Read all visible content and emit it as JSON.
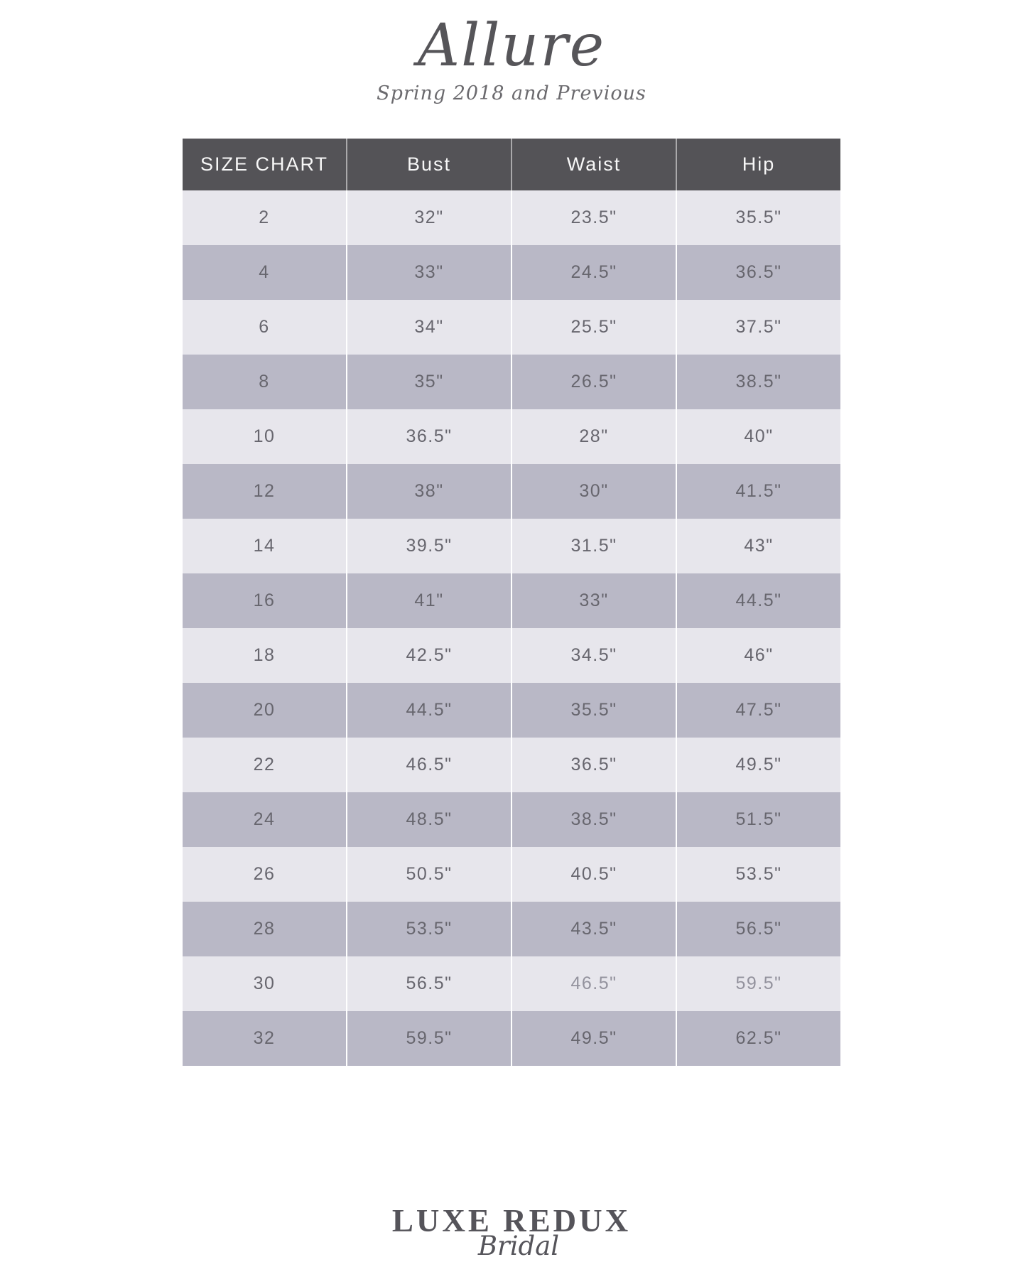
{
  "page": {
    "title": "Allure",
    "subtitle": "Spring 2018 and Previous"
  },
  "table": {
    "header": [
      "SIZE CHART",
      "Bust",
      "Waist",
      "Hip"
    ],
    "rows": [
      {
        "size": "2",
        "bust": "32\"",
        "waist": "23.5\"",
        "hip": "35.5\""
      },
      {
        "size": "4",
        "bust": "33\"",
        "waist": "24.5\"",
        "hip": "36.5\""
      },
      {
        "size": "6",
        "bust": "34\"",
        "waist": "25.5\"",
        "hip": "37.5\""
      },
      {
        "size": "8",
        "bust": "35\"",
        "waist": "26.5\"",
        "hip": "38.5\""
      },
      {
        "size": "10",
        "bust": "36.5\"",
        "waist": "28\"",
        "hip": "40\""
      },
      {
        "size": "12",
        "bust": "38\"",
        "waist": "30\"",
        "hip": "41.5\""
      },
      {
        "size": "14",
        "bust": "39.5\"",
        "waist": "31.5\"",
        "hip": "43\""
      },
      {
        "size": "16",
        "bust": "41\"",
        "waist": "33\"",
        "hip": "44.5\""
      },
      {
        "size": "18",
        "bust": "42.5\"",
        "waist": "34.5\"",
        "hip": "46\""
      },
      {
        "size": "20",
        "bust": "44.5\"",
        "waist": "35.5\"",
        "hip": "47.5\""
      },
      {
        "size": "22",
        "bust": "46.5\"",
        "waist": "36.5\"",
        "hip": "49.5\""
      },
      {
        "size": "24",
        "bust": "48.5\"",
        "waist": "38.5\"",
        "hip": "51.5\""
      },
      {
        "size": "26",
        "bust": "50.5\"",
        "waist": "40.5\"",
        "hip": "53.5\""
      },
      {
        "size": "28",
        "bust": "53.5\"",
        "waist": "43.5\"",
        "hip": "56.5\""
      },
      {
        "size": "30",
        "bust": "56.5\"",
        "waist": "46.5\"",
        "hip": "59.5\""
      },
      {
        "size": "32",
        "bust": "59.5\"",
        "waist": "49.5\"",
        "hip": "62.5\""
      }
    ]
  },
  "footer": {
    "brand_primary": "LUXE REDUX",
    "brand_secondary": "Bridal"
  },
  "colors": {
    "header_bg": "#545357",
    "row_light": "#e7e6ec",
    "row_dark": "#b9b8c6",
    "cell_text": "#67666e",
    "muted_cell_text": "#93929d",
    "header_text": "#f7f7f7",
    "brand_text": "#565559"
  }
}
